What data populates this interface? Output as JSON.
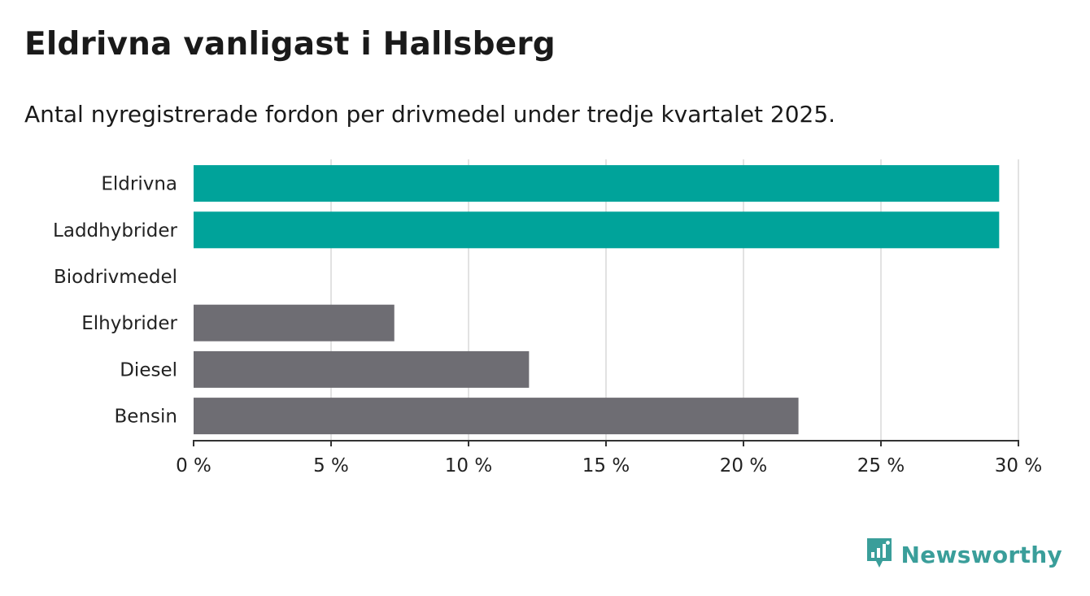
{
  "title": "Eldrivna vanligast i Hallsberg",
  "subtitle": "Antal nyregistrerade fordon per drivmedel under tredje kvartalet 2025.",
  "brand": {
    "name": "Newsworthy",
    "color": "#3a9e9a"
  },
  "colors": {
    "highlight": "#00a39a",
    "default": "#6e6d73",
    "grid": "#d9d9d9",
    "axis": "#333333"
  },
  "chart_data": {
    "type": "bar",
    "orientation": "horizontal",
    "categories": [
      "Eldrivna",
      "Laddhybrider",
      "Biodrivmedel",
      "Elhybrider",
      "Diesel",
      "Bensin"
    ],
    "values": [
      29.3,
      29.3,
      0,
      7.3,
      12.2,
      22.0
    ],
    "highlighted": [
      true,
      true,
      false,
      false,
      false,
      false
    ],
    "unit": "%",
    "xlim": [
      0,
      30
    ],
    "xticks": [
      0,
      5,
      10,
      15,
      20,
      25,
      30
    ],
    "xtick_labels": [
      "0 %",
      "5 %",
      "10 %",
      "15 %",
      "20 %",
      "25 %",
      "30 %"
    ],
    "grid": true,
    "title": "Eldrivna vanligast i Hallsberg",
    "xlabel": "",
    "ylabel": ""
  }
}
